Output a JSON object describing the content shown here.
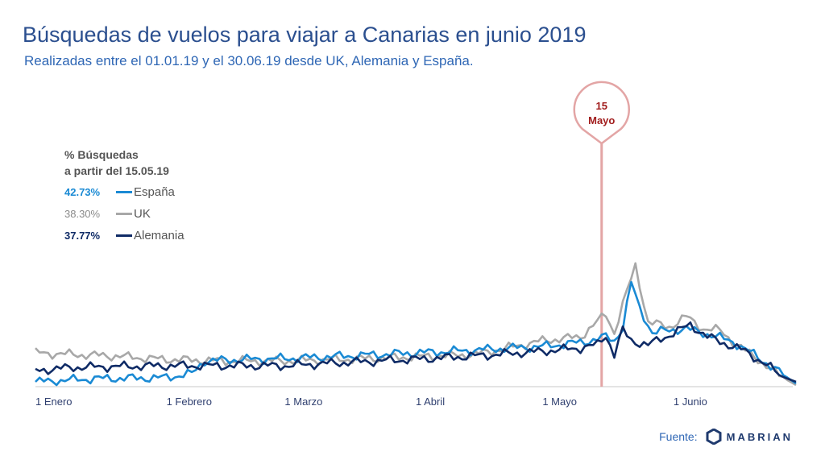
{
  "title": "Búsquedas de vuelos para viajar a Canarias en junio 2019",
  "subtitle": "Realizadas entre el 01.01.19 y el 30.06.19 desde UK, Alemania y España.",
  "source_label": "Fuente:",
  "logo_text": "MABRIAN",
  "chart_data": {
    "type": "line",
    "x_start": "2019-01-01",
    "x_end": "2019-06-30",
    "xticks": [
      {
        "date": "2019-01-01",
        "label": "1 Enero"
      },
      {
        "date": "2019-02-01",
        "label": "1 Febrero"
      },
      {
        "date": "2019-03-01",
        "label": "1 Marzo"
      },
      {
        "date": "2019-04-01",
        "label": "1 Abril"
      },
      {
        "date": "2019-05-01",
        "label": "1 Mayo"
      },
      {
        "date": "2019-06-01",
        "label": "1 Junio"
      }
    ],
    "marker": {
      "date": "2019-05-15",
      "label_line1": "15",
      "label_line2": "Mayo",
      "color": "#e3a5a5"
    },
    "legend": {
      "header_line1": "% Búsquedas",
      "header_line2": "a partir del 15.05.19"
    },
    "series": [
      {
        "name": "España",
        "pct": "42.73%",
        "color": "#1a8ad4",
        "anchors": [
          [
            "2019-01-01",
            4
          ],
          [
            "2019-01-15",
            8
          ],
          [
            "2019-01-31",
            9
          ],
          [
            "2019-02-07",
            14
          ],
          [
            "2019-02-10",
            30
          ],
          [
            "2019-02-20",
            32
          ],
          [
            "2019-03-01",
            33
          ],
          [
            "2019-03-15",
            36
          ],
          [
            "2019-04-01",
            40
          ],
          [
            "2019-04-10",
            42
          ],
          [
            "2019-04-20",
            45
          ],
          [
            "2019-05-01",
            48
          ],
          [
            "2019-05-10",
            53
          ],
          [
            "2019-05-14",
            57
          ],
          [
            "2019-05-16",
            60
          ],
          [
            "2019-05-18",
            55
          ],
          [
            "2019-05-20",
            72
          ],
          [
            "2019-05-22",
            127
          ],
          [
            "2019-05-24",
            95
          ],
          [
            "2019-05-27",
            65
          ],
          [
            "2019-05-31",
            68
          ],
          [
            "2019-06-04",
            70
          ],
          [
            "2019-06-10",
            62
          ],
          [
            "2019-06-15",
            54
          ],
          [
            "2019-06-20",
            38
          ],
          [
            "2019-06-25",
            20
          ],
          [
            "2019-06-30",
            2
          ]
        ]
      },
      {
        "name": "UK",
        "pct": "38.30%",
        "color": "#a8a8a8",
        "anchors": [
          [
            "2019-01-01",
            40
          ],
          [
            "2019-01-10",
            38
          ],
          [
            "2019-01-20",
            36
          ],
          [
            "2019-01-31",
            32
          ],
          [
            "2019-02-15",
            30
          ],
          [
            "2019-03-01",
            30
          ],
          [
            "2019-03-15",
            32
          ],
          [
            "2019-04-01",
            35
          ],
          [
            "2019-04-15",
            38
          ],
          [
            "2019-05-01",
            55
          ],
          [
            "2019-05-10",
            60
          ],
          [
            "2019-05-16",
            88
          ],
          [
            "2019-05-18",
            65
          ],
          [
            "2019-05-20",
            100
          ],
          [
            "2019-05-23",
            148
          ],
          [
            "2019-05-26",
            78
          ],
          [
            "2019-05-31",
            72
          ],
          [
            "2019-06-04",
            85
          ],
          [
            "2019-06-08",
            70
          ],
          [
            "2019-06-12",
            68
          ],
          [
            "2019-06-16",
            50
          ],
          [
            "2019-06-21",
            32
          ],
          [
            "2019-06-26",
            12
          ],
          [
            "2019-06-30",
            0
          ]
        ]
      },
      {
        "name": "Alemania",
        "pct": "37.77%",
        "color": "#0f2b66",
        "anchors": [
          [
            "2019-01-01",
            18
          ],
          [
            "2019-01-10",
            22
          ],
          [
            "2019-01-20",
            23
          ],
          [
            "2019-02-01",
            24
          ],
          [
            "2019-02-15",
            24
          ],
          [
            "2019-03-01",
            24
          ],
          [
            "2019-03-15",
            28
          ],
          [
            "2019-04-01",
            32
          ],
          [
            "2019-04-15",
            36
          ],
          [
            "2019-05-01",
            42
          ],
          [
            "2019-05-10",
            46
          ],
          [
            "2019-05-14",
            50
          ],
          [
            "2019-05-16",
            62
          ],
          [
            "2019-05-18",
            38
          ],
          [
            "2019-05-20",
            68
          ],
          [
            "2019-05-22",
            55
          ],
          [
            "2019-05-26",
            50
          ],
          [
            "2019-05-31",
            62
          ],
          [
            "2019-06-05",
            75
          ],
          [
            "2019-06-09",
            60
          ],
          [
            "2019-06-13",
            52
          ],
          [
            "2019-06-18",
            42
          ],
          [
            "2019-06-23",
            25
          ],
          [
            "2019-06-27",
            10
          ],
          [
            "2019-06-30",
            4
          ]
        ]
      }
    ],
    "ylim": [
      0,
      160
    ]
  }
}
